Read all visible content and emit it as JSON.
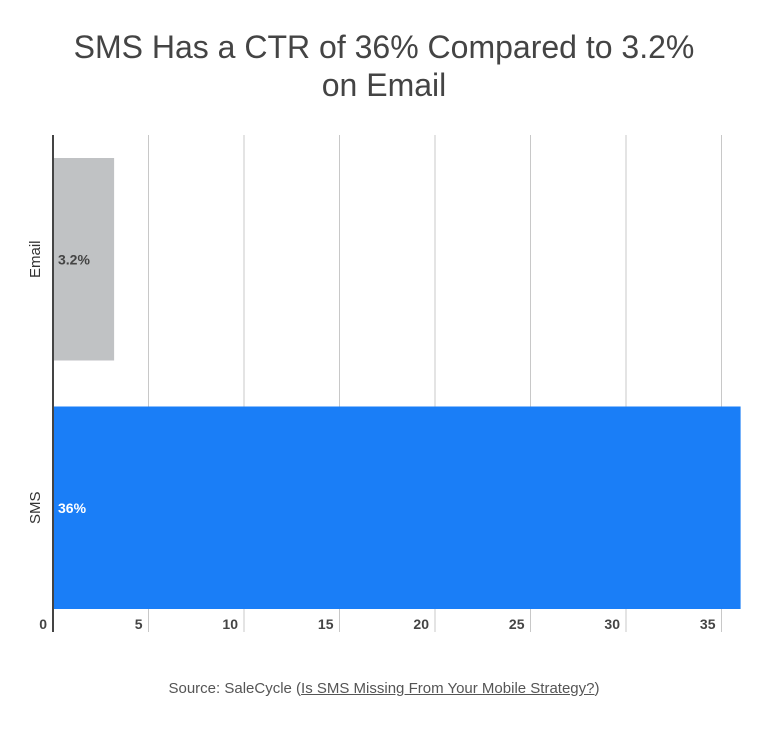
{
  "title_line1": "SMS Has a CTR of 36% Compared to 3.2%",
  "title_line2": "on Email",
  "source": {
    "prefix": "Source: SaleCycle (",
    "link": "Is SMS Missing From Your Mobile Strategy?",
    "suffix": ")"
  },
  "chart_data": {
    "type": "bar",
    "orientation": "horizontal",
    "title": "SMS Has a CTR of 36% Compared to 3.2% on Email",
    "categories": [
      "Email",
      "SMS"
    ],
    "values": [
      3.2,
      36
    ],
    "data_labels": [
      "3.2%",
      "36%"
    ],
    "colors": [
      "#c0c2c4",
      "#1a7ef7"
    ],
    "label_colors": [
      "#444444",
      "#ffffff"
    ],
    "xlim": [
      0,
      36
    ],
    "xticks": [
      0,
      5,
      10,
      15,
      20,
      25,
      30,
      35
    ],
    "grid": true,
    "xlabel": "",
    "ylabel": ""
  }
}
